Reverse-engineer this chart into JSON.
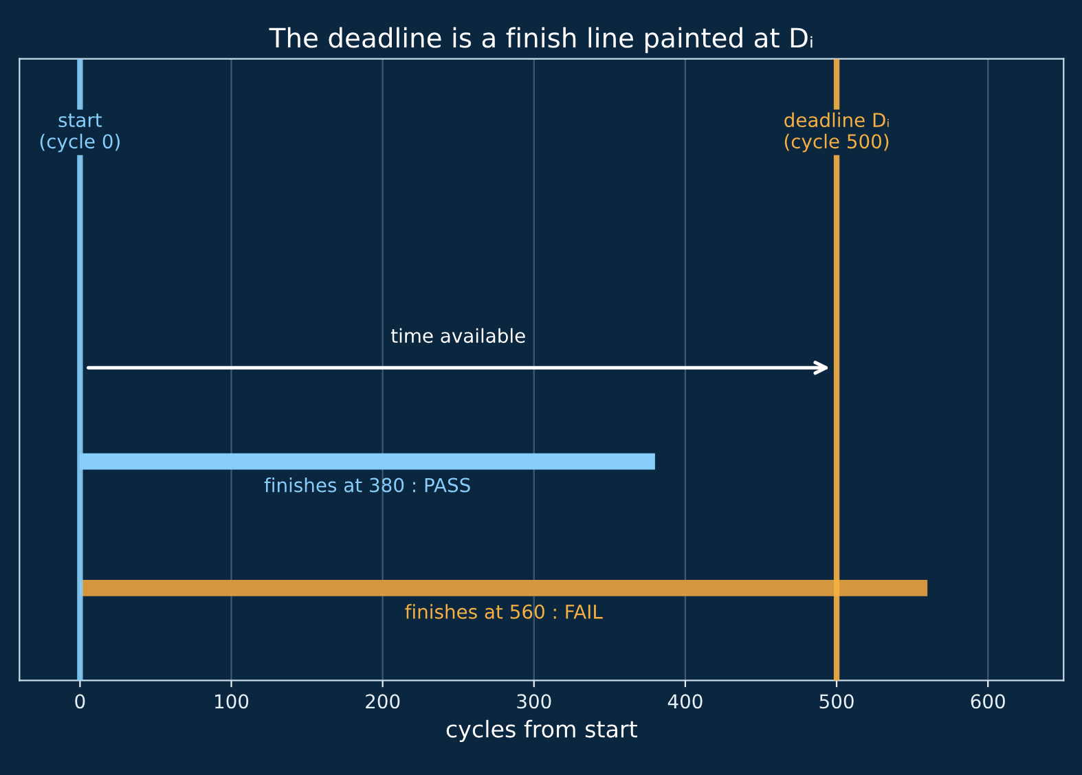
{
  "chart_data": {
    "type": "bar",
    "orientation": "horizontal",
    "title": "The deadline is a finish line painted at Dᵢ",
    "xlabel": "cycles from start",
    "categories": [
      null,
      null
    ],
    "values": [
      380,
      560
    ],
    "colors": [
      "#87cefa",
      "#d4963e"
    ],
    "value_labels": [
      "finishes at 380 : PASS",
      "finishes at 560 : FAIL"
    ],
    "ref_lines": [
      {
        "axis": "x",
        "value": 0,
        "label": "start\n(cycle 0)",
        "color": "#87cefa"
      },
      {
        "axis": "x",
        "value": 500,
        "label": "deadline Dᵢ\n(cycle 500)",
        "color": "#f5b041"
      }
    ],
    "annotations": [
      "time available"
    ],
    "xlim": [
      -40,
      650
    ],
    "xticks": [
      0,
      100,
      200,
      300,
      400,
      500,
      600
    ],
    "grid": "x",
    "tick_labels": "x"
  }
}
